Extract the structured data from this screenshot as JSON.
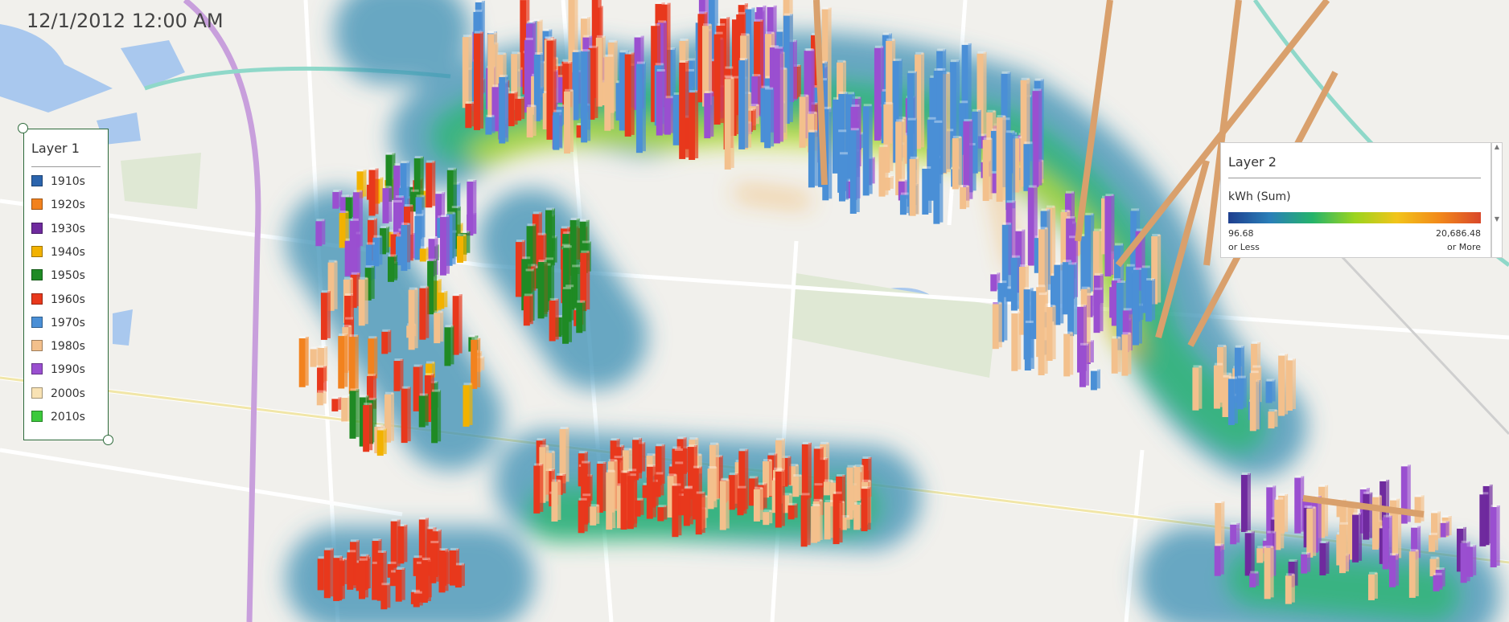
{
  "timestamp": "12/1/2012 12:00 AM",
  "layer1": {
    "title": "Layer 1",
    "items": [
      {
        "label": "1910s",
        "color": "#2b64ad"
      },
      {
        "label": "1920s",
        "color": "#f2821e"
      },
      {
        "label": "1930s",
        "color": "#6f2a9e"
      },
      {
        "label": "1940s",
        "color": "#f2b200"
      },
      {
        "label": "1950s",
        "color": "#1f8a24"
      },
      {
        "label": "1960s",
        "color": "#e8381c"
      },
      {
        "label": "1970s",
        "color": "#4a8fd6"
      },
      {
        "label": "1980s",
        "color": "#f3c08c"
      },
      {
        "label": "1990s",
        "color": "#9a4fd0"
      },
      {
        "label": "2000s",
        "color": "#f8e2b4"
      },
      {
        "label": "2010s",
        "color": "#3cc93c"
      }
    ]
  },
  "layer2": {
    "title": "Layer 2",
    "measure": "kWh (Sum)",
    "min": "96.68",
    "min_note": "or Less",
    "max": "20,686.48",
    "max_note": "or More"
  }
}
